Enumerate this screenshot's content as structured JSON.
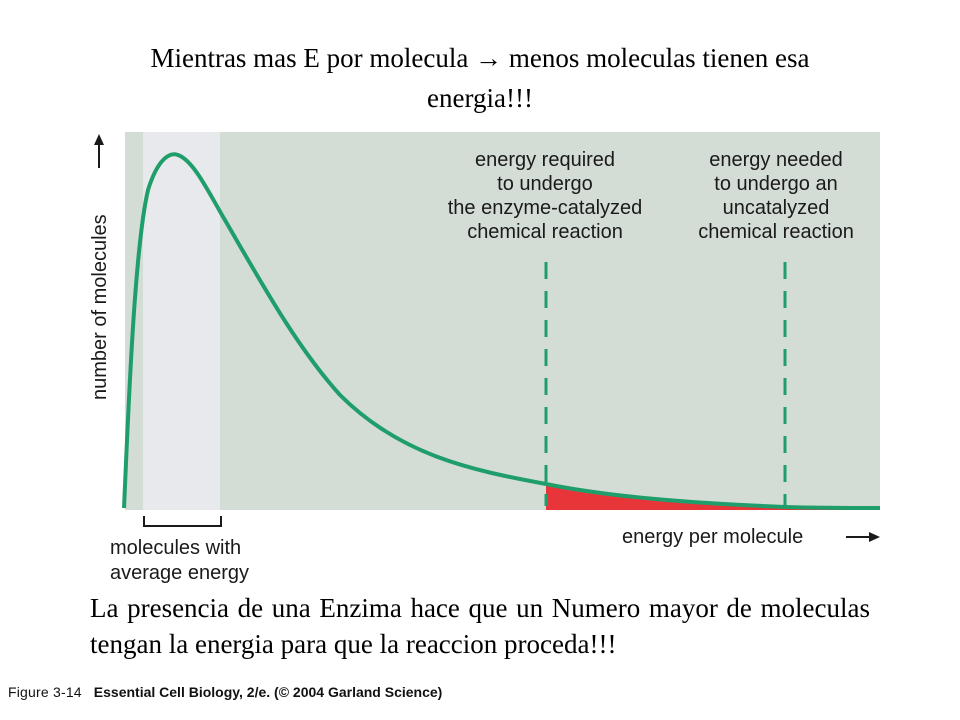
{
  "title": {
    "line1_before": "Mientras mas E por molecula",
    "arrow_glyph": "→",
    "line1_after": "menos moleculas tienen esa",
    "line2": "energia!!!"
  },
  "diagram": {
    "y_axis_label": "number of molecules",
    "x_axis_label": "energy per molecule",
    "average_label": [
      "molecules with",
      "average energy"
    ],
    "catalyzed_label": [
      "energy required",
      "to undergo",
      "the enzyme-catalyzed",
      "chemical reaction"
    ],
    "uncatalyzed_label": [
      "energy needed",
      "to undergo an",
      "uncatalyzed",
      "chemical reaction"
    ],
    "colors": {
      "background": "#d4dcd6",
      "average_band": "#e8e9ec",
      "curve": "#1f9e6b",
      "shaded_area": "#e8353a",
      "dashes": "#1f9e6b"
    }
  },
  "caption": "La presencia de una Enzima hace que un Numero mayor de moleculas tengan la energia para que la reaccion proceda!!!",
  "credit": {
    "figure": "Figure 3-14",
    "source": "Essential Cell Biology, 2/e. (© 2004 Garland Science)"
  }
}
